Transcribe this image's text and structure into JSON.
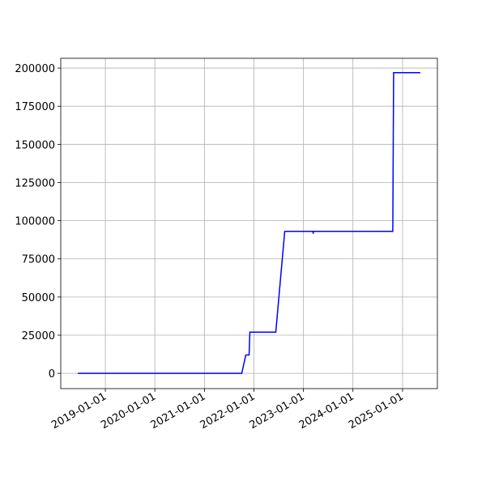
{
  "chart_data": {
    "type": "line",
    "x": [
      "2018-06-12",
      "2021-10-03",
      "2021-11-02",
      "2021-11-26",
      "2021-12-02",
      "2022-06-11",
      "2022-08-16",
      "2023-03-12",
      "2023-03-14",
      "2023-03-16",
      "2024-10-21",
      "2024-10-27",
      "2025-05-12"
    ],
    "series": [
      {
        "color": "#0000ff",
        "values": [
          0,
          0,
          12000,
          12000,
          27000,
          27000,
          93000,
          93000,
          91500,
          93000,
          93000,
          197000,
          197000
        ]
      }
    ],
    "xlim": [
      "2018-02-06",
      "2025-09-15"
    ],
    "xticks": [
      "2019-01-01",
      "2020-01-01",
      "2021-01-01",
      "2022-01-01",
      "2023-01-01",
      "2024-01-01",
      "2025-01-01"
    ],
    "ylim": [
      -10000,
      206400
    ],
    "yticks": [
      0,
      25000,
      50000,
      75000,
      100000,
      125000,
      150000,
      175000,
      200000
    ],
    "grid": true
  }
}
